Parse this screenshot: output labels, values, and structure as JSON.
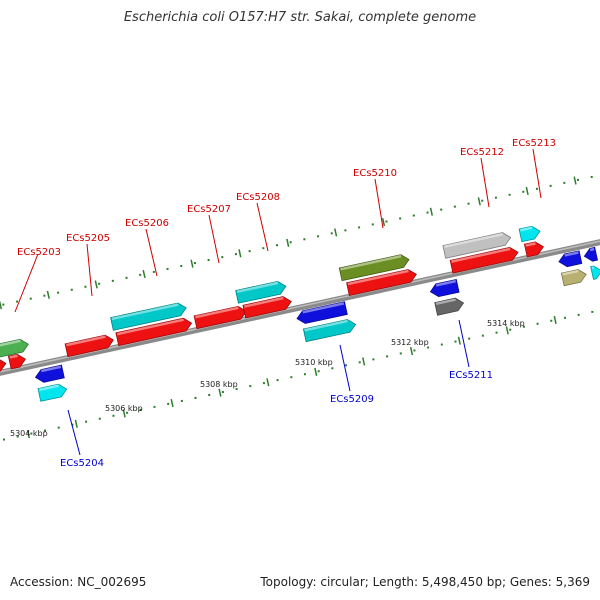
{
  "title": "Escherichia coli O157:H7 str. Sakai, complete genome",
  "footer": {
    "accession": "Accession: NC_002695",
    "topology": "Topology: circular; Length: 5,498,450 bp; Genes: 5,369"
  },
  "colors": {
    "backbone": "#8a8a8a",
    "tick": "#2e7d2e",
    "label_forward": "#cc0000",
    "label_reverse": "#0000cc"
  },
  "scale": {
    "unit": "kbp",
    "ticks_kbp": [
      5304,
      5306,
      5308,
      5310,
      5312,
      5314
    ]
  },
  "genes": [
    {
      "id": "ECs5203",
      "strand": "+",
      "color": "#4caf50"
    },
    {
      "id": "ECs5204",
      "strand": "-",
      "color": "#00e5ee"
    },
    {
      "id": "ECs5205",
      "strand": "+",
      "color": "#ee1111"
    },
    {
      "id": "ECs5206",
      "strand": "+",
      "color": "#00c8c8"
    },
    {
      "id": "ECs5207",
      "strand": "+",
      "color": "#ee1111"
    },
    {
      "id": "ECs5208",
      "strand": "+",
      "color": "#ee1111"
    },
    {
      "id": "ECs5209",
      "strand": "-",
      "color": "#00c8c8"
    },
    {
      "id": "ECs5210",
      "strand": "+",
      "color": "#6b8e23"
    },
    {
      "id": "ECs5211",
      "strand": "-",
      "color": "#666666"
    },
    {
      "id": "ECs5212",
      "strand": "+",
      "color": "#c0c0c0"
    },
    {
      "id": "ECs5213",
      "strand": "+",
      "color": "#00e5ee"
    }
  ]
}
